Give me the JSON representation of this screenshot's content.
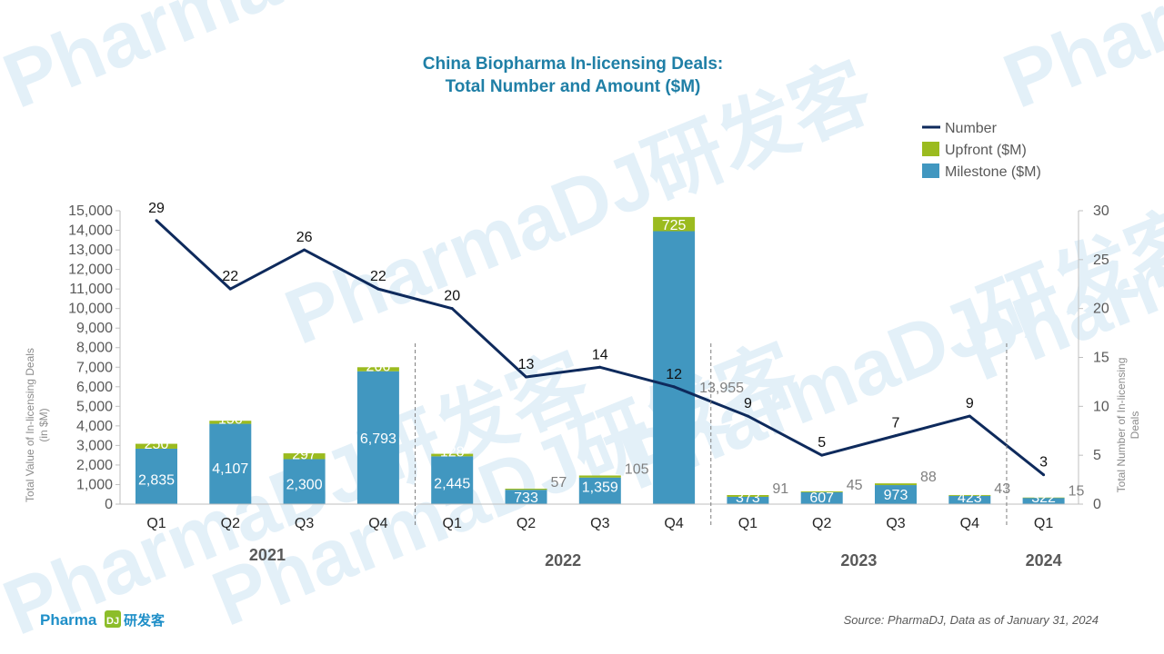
{
  "watermark": {
    "text": "PharmaDJ研发客"
  },
  "logo": {
    "latin": "Pharma",
    "mark": "DJ",
    "chinese": "研发客"
  },
  "source": "Source: PharmaDJ, Data as of January 31, 2024",
  "colors": {
    "milestone": "#4197c0",
    "upfront": "#9bbb1f",
    "number": "#0e2a5c",
    "title": "#1f7fa6"
  },
  "chart_data": {
    "type": "bar",
    "title": [
      "China Biopharma In-licensing Deals:",
      "Total Number and Amount ($M)"
    ],
    "categories": [
      "Q1",
      "Q2",
      "Q3",
      "Q4",
      "Q1",
      "Q2",
      "Q3",
      "Q4",
      "Q1",
      "Q2",
      "Q3",
      "Q4",
      "Q1"
    ],
    "years": [
      {
        "label": "2021",
        "span": [
          0,
          3
        ]
      },
      {
        "label": "2022",
        "span": [
          4,
          7
        ]
      },
      {
        "label": "2023",
        "span": [
          8,
          11
        ]
      },
      {
        "label": "2024",
        "span": [
          12,
          12
        ]
      }
    ],
    "series": [
      {
        "name": "Milestone ($M)",
        "type": "bar",
        "stack": true,
        "values": [
          2835,
          4107,
          2300,
          6793,
          2445,
          733,
          1359,
          13955,
          373,
          607,
          973,
          423,
          322
        ],
        "labels": [
          "2,835",
          "4,107",
          "2,300",
          "6,793",
          "2,445",
          "733",
          "1,359",
          "13,955",
          "373",
          "607",
          "973",
          "423",
          "322"
        ]
      },
      {
        "name": "Upfront ($M)",
        "type": "bar",
        "stack": true,
        "values": [
          250,
          156,
          297,
          206,
          128,
          57,
          105,
          725,
          91,
          45,
          88,
          43,
          15
        ],
        "labels": [
          "250",
          "156",
          "297",
          "206",
          "128",
          "57",
          "105",
          "725",
          "91",
          "45",
          "88",
          "43",
          "15"
        ]
      },
      {
        "name": "Number",
        "type": "line",
        "axis": "right",
        "values": [
          29,
          22,
          26,
          22,
          20,
          13,
          14,
          12,
          9,
          5,
          7,
          9,
          3
        ],
        "labels": [
          "29",
          "22",
          "26",
          "22",
          "20",
          "13",
          "14",
          "12",
          "9",
          "5",
          "7",
          "9",
          "3"
        ]
      }
    ],
    "legend_order": [
      "Number",
      "Upfront ($M)",
      "Milestone ($M)"
    ],
    "legend_position": "top-right",
    "y_left": {
      "label": [
        "Total Value of In-licensing Deals",
        "(in $M)"
      ],
      "lim": [
        0,
        15000
      ],
      "step": 1000,
      "ticks": [
        "0",
        "1,000",
        "2,000",
        "3,000",
        "4,000",
        "5,000",
        "6,000",
        "7,000",
        "8,000",
        "9,000",
        "10,000",
        "11,000",
        "12,000",
        "13,000",
        "14,000",
        "15,000"
      ]
    },
    "y_right": {
      "label": [
        "Total Number of In-licensing",
        "Deals"
      ],
      "lim": [
        0,
        30
      ],
      "step": 5,
      "ticks": [
        "0",
        "5",
        "10",
        "15",
        "20",
        "25",
        "30"
      ]
    },
    "grid": false
  }
}
